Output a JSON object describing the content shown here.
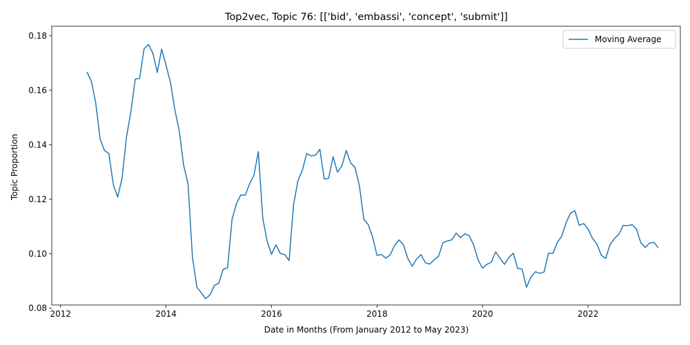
{
  "chart_data": {
    "type": "line",
    "title": "Top2vec, Topic 76: [['bid', 'embassi', 'concept', 'submit']]",
    "xlabel": "Date in Months (From January 2012 to May 2023)",
    "ylabel": "Topic Proportion",
    "xlim": [
      "2011-11",
      "2023-10"
    ],
    "ylim": [
      0.0812,
      0.1835
    ],
    "x_ticks": [
      {
        "value": "2012-01",
        "label": "2012"
      },
      {
        "value": "2014-01",
        "label": "2014"
      },
      {
        "value": "2016-01",
        "label": "2016"
      },
      {
        "value": "2018-01",
        "label": "2018"
      },
      {
        "value": "2020-01",
        "label": "2020"
      },
      {
        "value": "2022-01",
        "label": "2022"
      }
    ],
    "y_ticks": [
      0.08,
      0.1,
      0.12,
      0.14,
      0.16,
      0.18
    ],
    "y_tick_labels": [
      "0.08",
      "0.10",
      "0.12",
      "0.14",
      "0.16",
      "0.18"
    ],
    "grid": false,
    "legend_position": "top-right",
    "color": "#1f77b4",
    "series": [
      {
        "name": "Moving Average",
        "x": [
          "2012-07",
          "2012-08",
          "2012-09",
          "2012-10",
          "2012-11",
          "2012-12",
          "2013-01",
          "2013-02",
          "2013-03",
          "2013-04",
          "2013-05",
          "2013-06",
          "2013-07",
          "2013-08",
          "2013-09",
          "2013-10",
          "2013-11",
          "2013-12",
          "2014-01",
          "2014-02",
          "2014-03",
          "2014-04",
          "2014-05",
          "2014-06",
          "2014-07",
          "2014-08",
          "2014-09",
          "2014-10",
          "2014-11",
          "2014-12",
          "2015-01",
          "2015-02",
          "2015-03",
          "2015-04",
          "2015-05",
          "2015-06",
          "2015-07",
          "2015-08",
          "2015-09",
          "2015-10",
          "2015-11",
          "2015-12",
          "2016-01",
          "2016-02",
          "2016-03",
          "2016-04",
          "2016-05",
          "2016-06",
          "2016-07",
          "2016-08",
          "2016-09",
          "2016-10",
          "2016-11",
          "2016-12",
          "2017-01",
          "2017-02",
          "2017-03",
          "2017-04",
          "2017-05",
          "2017-06",
          "2017-07",
          "2017-08",
          "2017-09",
          "2017-10",
          "2017-11",
          "2017-12",
          "2018-01",
          "2018-02",
          "2018-03",
          "2018-04",
          "2018-05",
          "2018-06",
          "2018-07",
          "2018-08",
          "2018-09",
          "2018-10",
          "2018-11",
          "2018-12",
          "2019-01",
          "2019-02",
          "2019-03",
          "2019-04",
          "2019-05",
          "2019-06",
          "2019-07",
          "2019-08",
          "2019-09",
          "2019-10",
          "2019-11",
          "2019-12",
          "2020-01",
          "2020-02",
          "2020-03",
          "2020-04",
          "2020-05",
          "2020-06",
          "2020-07",
          "2020-08",
          "2020-09",
          "2020-10",
          "2020-11",
          "2020-12",
          "2021-01",
          "2021-02",
          "2021-03",
          "2021-04",
          "2021-05",
          "2021-06",
          "2021-07",
          "2021-08",
          "2021-09",
          "2021-10",
          "2021-11",
          "2021-12",
          "2022-01",
          "2022-02",
          "2022-03",
          "2022-04",
          "2022-05",
          "2022-06",
          "2022-07",
          "2022-08",
          "2022-09",
          "2022-10",
          "2022-11",
          "2022-12",
          "2023-01",
          "2023-02",
          "2023-03",
          "2023-04",
          "2023-05"
        ],
        "values": [
          0.1667,
          0.1634,
          0.1554,
          0.1421,
          0.1379,
          0.1368,
          0.1254,
          0.1208,
          0.1278,
          0.1428,
          0.1522,
          0.1641,
          0.1644,
          0.1752,
          0.1768,
          0.1736,
          0.1665,
          0.1751,
          0.1692,
          0.1629,
          0.1529,
          0.1451,
          0.1325,
          0.1256,
          0.0989,
          0.0878,
          0.0857,
          0.0835,
          0.0849,
          0.0884,
          0.0892,
          0.0943,
          0.0948,
          0.1125,
          0.1183,
          0.1216,
          0.1215,
          0.1256,
          0.1288,
          0.1375,
          0.1131,
          0.1046,
          0.0998,
          0.1033,
          0.1001,
          0.0997,
          0.0975,
          0.1179,
          0.1268,
          0.1306,
          0.1368,
          0.1359,
          0.1362,
          0.1383,
          0.1274,
          0.1277,
          0.1356,
          0.1299,
          0.1322,
          0.1379,
          0.1333,
          0.1317,
          0.1248,
          0.1127,
          0.1107,
          0.1061,
          0.0994,
          0.0997,
          0.0984,
          0.0996,
          0.1031,
          0.1051,
          0.1033,
          0.0983,
          0.0954,
          0.0981,
          0.0997,
          0.0967,
          0.0962,
          0.0978,
          0.0991,
          0.1041,
          0.1047,
          0.1051,
          0.1076,
          0.1059,
          0.1073,
          0.1066,
          0.1031,
          0.0977,
          0.0947,
          0.0961,
          0.0969,
          0.1007,
          0.0983,
          0.0961,
          0.0986,
          0.1002,
          0.0946,
          0.0944,
          0.0877,
          0.0914,
          0.0934,
          0.0928,
          0.0933,
          0.1002,
          0.1001,
          0.1041,
          0.1064,
          0.1113,
          0.1149,
          0.1158,
          0.1104,
          0.1111,
          0.1091,
          0.1057,
          0.1036,
          0.0995,
          0.0983,
          0.1033,
          0.1056,
          0.1071,
          0.1104,
          0.1103,
          0.1107,
          0.1091,
          0.1041,
          0.1023,
          0.1039,
          0.1042,
          0.1021
        ]
      }
    ]
  }
}
